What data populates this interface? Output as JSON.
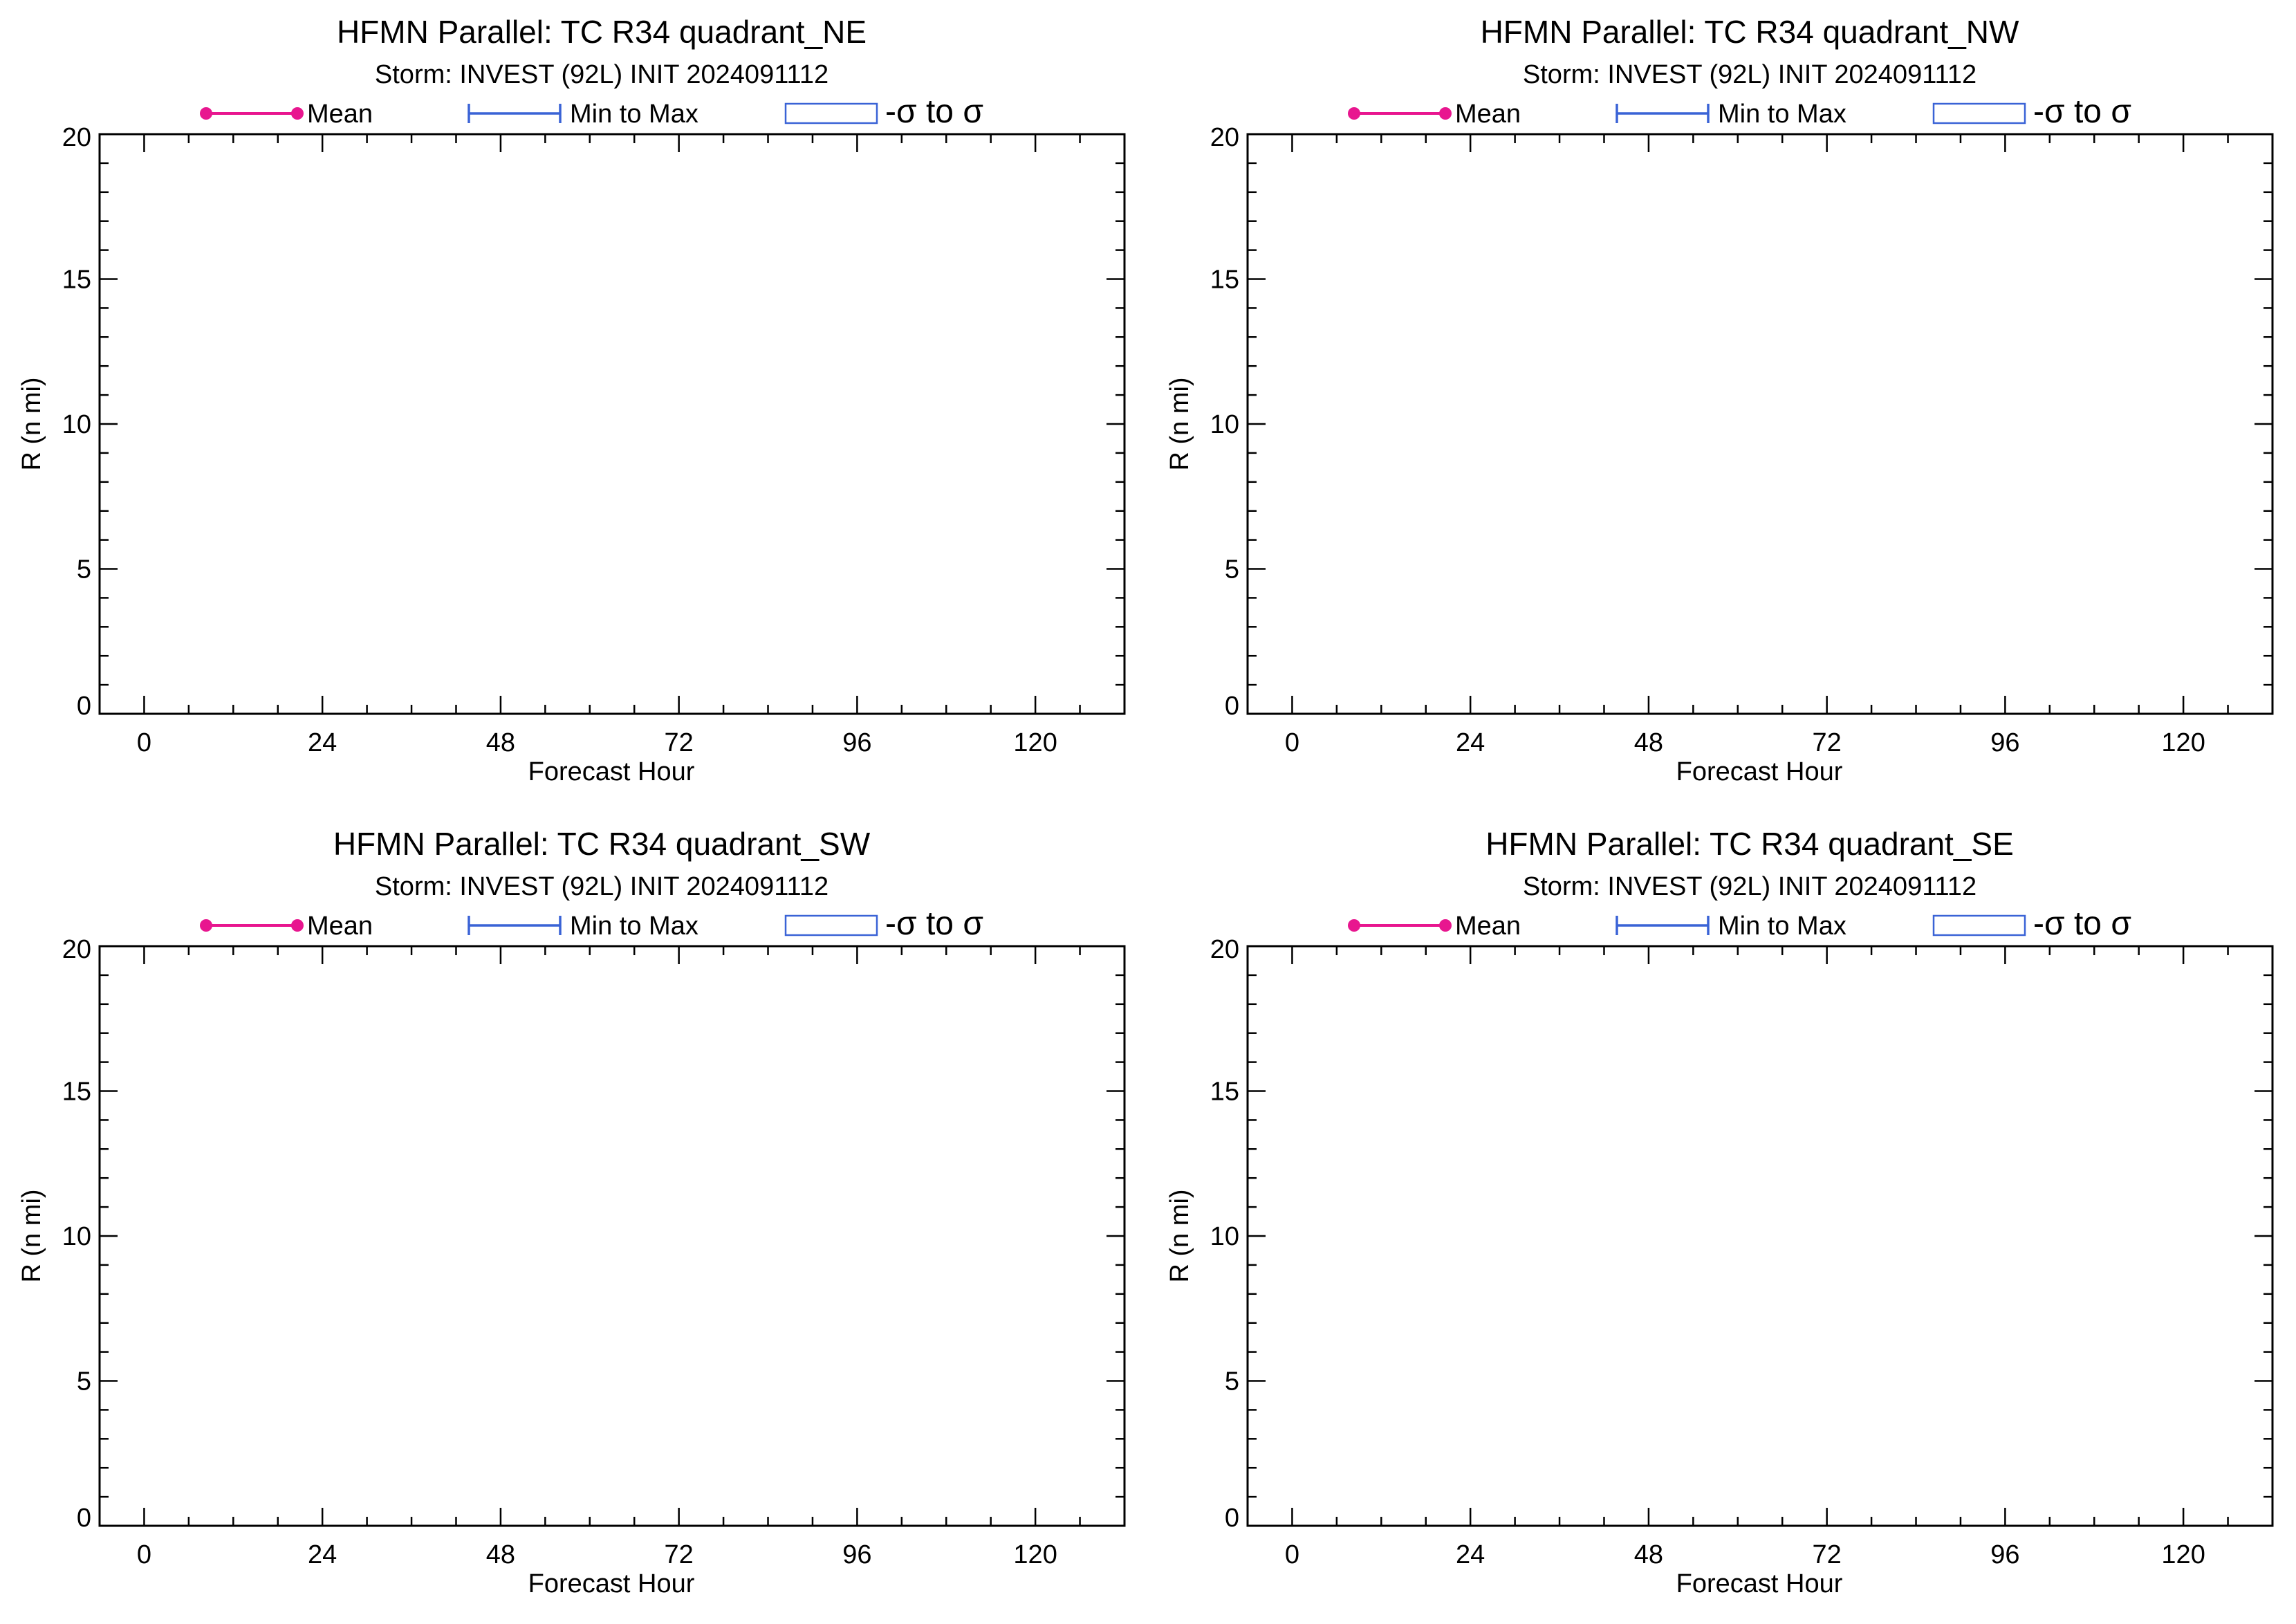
{
  "colors": {
    "mean": "#e8168f",
    "minmax": "#3a63d6",
    "sigma": "#3a63d6",
    "axis": "#000000"
  },
  "legend": {
    "mean": "Mean",
    "minmax": "Min to Max",
    "sigma": "-σ to σ"
  },
  "chart_data": [
    {
      "type": "line",
      "title": "HFMN Parallel: TC  R34 quadrant_NE",
      "subtitle": "Storm: INVEST (92L) INIT 2024091112",
      "xlabel": "Forecast Hour",
      "ylabel": "R (n mi)",
      "xlim": [
        -6,
        132
      ],
      "ylim": [
        0,
        20
      ],
      "xticks": [
        0,
        24,
        48,
        72,
        96,
        120
      ],
      "yticks": [
        0,
        5,
        10,
        15,
        20
      ],
      "series": []
    },
    {
      "type": "line",
      "title": "HFMN Parallel: TC  R34 quadrant_NW",
      "subtitle": "Storm: INVEST (92L) INIT 2024091112",
      "xlabel": "Forecast Hour",
      "ylabel": "R (n mi)",
      "xlim": [
        -6,
        132
      ],
      "ylim": [
        0,
        20
      ],
      "xticks": [
        0,
        24,
        48,
        72,
        96,
        120
      ],
      "yticks": [
        0,
        5,
        10,
        15,
        20
      ],
      "series": []
    },
    {
      "type": "line",
      "title": "HFMN Parallel: TC  R34 quadrant_SW",
      "subtitle": "Storm: INVEST (92L) INIT 2024091112",
      "xlabel": "Forecast Hour",
      "ylabel": "R (n mi)",
      "xlim": [
        -6,
        132
      ],
      "ylim": [
        0,
        20
      ],
      "xticks": [
        0,
        24,
        48,
        72,
        96,
        120
      ],
      "yticks": [
        0,
        5,
        10,
        15,
        20
      ],
      "series": []
    },
    {
      "type": "line",
      "title": "HFMN Parallel: TC  R34 quadrant_SE",
      "subtitle": "Storm: INVEST (92L) INIT 2024091112",
      "xlabel": "Forecast Hour",
      "ylabel": "R (n mi)",
      "xlim": [
        -6,
        132
      ],
      "ylim": [
        0,
        20
      ],
      "xticks": [
        0,
        24,
        48,
        72,
        96,
        120
      ],
      "yticks": [
        0,
        5,
        10,
        15,
        20
      ],
      "series": []
    }
  ]
}
